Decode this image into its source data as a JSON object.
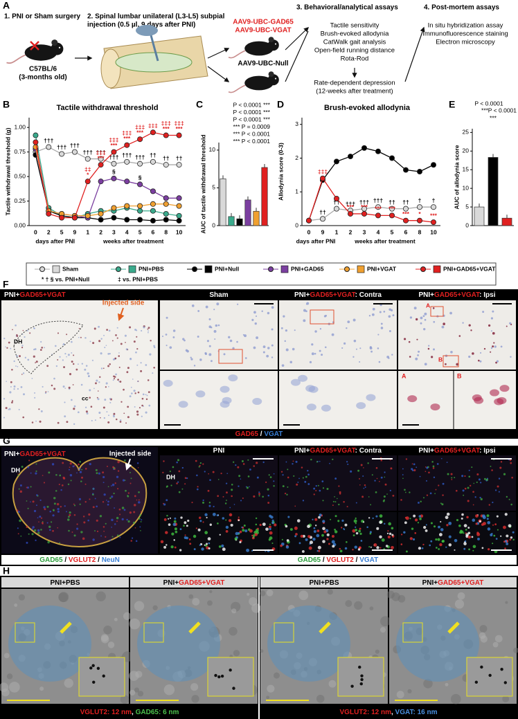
{
  "panel_a": {
    "letter": "A",
    "step_1": "1. PNI or Sham surgery",
    "step_2": [
      "2. Spinal lumbar unilateral (L3-L5) subpial",
      "injection (0.5 µl, 9 days after PNI)"
    ],
    "mouse_strain": [
      "C57BL/6",
      "(3-months old)"
    ],
    "vectors_treatment": [
      "AAV9-UBC-GAD65",
      "AAV9-UBC-VGAT"
    ],
    "vector_control": "AAV9-UBC-Null",
    "step_3": "3. Behavioral/analytical assays",
    "assays": [
      "Tactile sensitivity",
      "Brush-evoked allodynia",
      "CatWalk gait analysis",
      "Open-field running distance",
      "Rota-Rod"
    ],
    "depression": [
      "Rate-dependent depression",
      "(12-weeks after treatment)"
    ],
    "step_4": "4. Post-mortem assays",
    "post_mortem": [
      "In situ hybridization assay",
      "Immunofluorescence staining",
      "Electron microscopy"
    ]
  },
  "chart_data": [
    {
      "type": "line",
      "letter": "B",
      "title": "Tactile withdrawal threshold",
      "y_label": "Tactile withdrawal threshold (g)",
      "categories": [
        "0",
        "2",
        "5",
        "9",
        "1",
        "2",
        "3",
        "4",
        "5",
        "6",
        "8",
        "10"
      ],
      "x_groups": [
        "days after PNI",
        "weeks after treatment"
      ],
      "ylim": [
        0,
        1.1
      ],
      "yticks": [
        {
          "value": 0,
          "label": "0.00"
        },
        {
          "value": 0.25,
          "label": "0.25"
        },
        {
          "value": 0.5,
          "label": "0.50"
        },
        {
          "value": 0.75,
          "label": "0.75"
        },
        {
          "value": 1,
          "label": "1.00"
        }
      ],
      "series": [
        {
          "name": "Sham",
          "color": "#d9d9d9",
          "values": [
            0.75,
            0.8,
            0.73,
            0.75,
            0.68,
            0.68,
            0.63,
            0.65,
            0.63,
            0.65,
            0.62,
            0.62
          ],
          "annotation_color": "#000000",
          "annotations": [
            null,
            [
              "†††"
            ],
            [
              "†††"
            ],
            [
              "†††"
            ],
            [
              "†††"
            ],
            [
              "†††"
            ],
            [
              "†††"
            ],
            [
              "†††"
            ],
            [
              "†††"
            ],
            [
              "††"
            ],
            [
              "††"
            ],
            [
              "††"
            ]
          ]
        },
        {
          "name": "PNI+PBS",
          "color": "#3aaa8c",
          "values": [
            0.92,
            0.18,
            0.1,
            0.08,
            0.12,
            0.15,
            0.15,
            0.18,
            0.15,
            0.15,
            0.12,
            0.1
          ]
        },
        {
          "name": "PNI+Null",
          "color": "#000000",
          "values": [
            0.72,
            0.15,
            0.1,
            0.08,
            0.08,
            0.06,
            0.08,
            0.06,
            0.06,
            0.05,
            0.06,
            0.05
          ]
        },
        {
          "name": "PNI+GAD65",
          "color": "#7b3fa0",
          "values": [
            0.78,
            0.15,
            0.12,
            0.1,
            0.08,
            0.45,
            0.48,
            0.45,
            0.42,
            0.35,
            0.28,
            0.28
          ],
          "annotation_color": "#000000",
          "annotations": [
            null,
            null,
            null,
            null,
            null,
            null,
            [
              "§"
            ],
            null,
            [
              "§"
            ],
            null,
            null,
            null
          ]
        },
        {
          "name": "PNI+VGAT",
          "color": "#f0a030",
          "values": [
            0.8,
            0.15,
            0.12,
            0.1,
            0.1,
            0.12,
            0.18,
            0.2,
            0.2,
            0.22,
            0.22,
            0.2
          ]
        },
        {
          "name": "PNI+GAD65+VGAT",
          "color": "#e02020",
          "values": [
            0.85,
            0.12,
            0.08,
            0.08,
            0.45,
            0.62,
            0.75,
            0.82,
            0.88,
            0.95,
            0.92,
            0.92
          ],
          "annotation_color": "#e02020",
          "annotations": [
            null,
            null,
            null,
            null,
            [
              "‡‡",
              "*"
            ],
            [
              "‡‡‡",
              "***"
            ],
            [
              "‡‡‡",
              "***"
            ],
            [
              "‡‡‡",
              "***"
            ],
            [
              "‡‡‡",
              "***"
            ],
            [
              "‡‡‡"
            ],
            [
              "‡‡‡",
              "***"
            ],
            [
              "‡‡‡",
              "***"
            ]
          ]
        }
      ]
    },
    {
      "type": "bar",
      "letter": "C",
      "y_label": "AUC of tactile withdrawal threshold",
      "categories": [
        null,
        null,
        null,
        null,
        null,
        null
      ],
      "values": [
        6.2,
        1.2,
        0.9,
        3.4,
        1.9,
        7.7
      ],
      "colors": [
        "#d9d9d9",
        "#3aaa8c",
        "#000000",
        "#7b3fa0",
        "#f0a030",
        "#e02020"
      ],
      "ylim": [
        0,
        11
      ],
      "yticks": [
        0,
        5,
        10
      ],
      "comparisons": [
        "P < 0.0001 ***",
        "P < 0.0001 ***",
        "P < 0.0001 ***",
        "*** P = 0.0009",
        "*** P < 0.0001",
        "*** P < 0.0001"
      ]
    },
    {
      "type": "line",
      "letter": "D",
      "title": "Brush-evoked allodynia",
      "y_label": "Allodynia score (0-3)",
      "categories": [
        "0",
        "9",
        "1",
        "2",
        "3",
        "4",
        "5",
        "6",
        "8",
        "10"
      ],
      "x_groups": [
        "days after PNI",
        "weeks after treatment"
      ],
      "ylim": [
        0,
        3.2
      ],
      "yticks": [
        0,
        1,
        2,
        3
      ],
      "series": [
        {
          "color": "#d9d9d9",
          "values": [
            0.15,
            0.2,
            0.5,
            0.45,
            0.5,
            0.55,
            0.5,
            0.5,
            0.55,
            0.55
          ],
          "annotation_color": "#000000",
          "annotations": [
            null,
            [
              "††"
            ],
            [
              "††"
            ],
            [
              "†††"
            ],
            [
              "†††"
            ],
            [
              "†††"
            ],
            [
              "††"
            ],
            [
              "††"
            ],
            [
              "†"
            ],
            [
              "†"
            ]
          ]
        },
        {
          "color": "#000000",
          "values": [
            0.15,
            1.35,
            1.9,
            2.05,
            2.3,
            2.2,
            2.0,
            1.65,
            1.6,
            1.8
          ]
        },
        {
          "color": "#e02020",
          "values": [
            0.15,
            1.4,
            0.8,
            0.35,
            0.35,
            0.3,
            0.3,
            0.15,
            0.15,
            0.1
          ],
          "annotation_color": "#e02020",
          "annotations": [
            null,
            [
              "‡‡‡"
            ],
            null,
            [
              "***"
            ],
            [
              "***"
            ],
            [
              "***"
            ],
            [
              "***"
            ],
            [
              "***"
            ],
            [
              "*"
            ],
            [
              "***"
            ]
          ]
        }
      ]
    },
    {
      "type": "bar",
      "letter": "E",
      "y_label": "AUC of allodynia score",
      "categories": [
        null,
        null,
        null
      ],
      "values": [
        5.0,
        18.3,
        2.0
      ],
      "colors": [
        "#d9d9d9",
        "#000000",
        "#e02020"
      ],
      "ylim": [
        0,
        26
      ],
      "yticks": [
        0,
        5,
        10,
        15,
        20,
        25
      ],
      "comparisons": [
        "P < 0.0001",
        "***",
        "***",
        "P < 0.0001"
      ]
    }
  ],
  "legend": {
    "notes": [
      "* † § vs. PNI+Null",
      "‡ vs. PNI+PBS"
    ]
  },
  "panel_f": {
    "letter": "F",
    "overview_title": [
      {
        "text": "PNI+",
        "color": "#ffffff"
      },
      {
        "text": "GAD65+VGAT",
        "color": "#e02020"
      }
    ],
    "injected_side": "Injected side",
    "dh": "DH",
    "cc": "cc",
    "columns": [
      [
        {
          "text": "Sham",
          "color": "#ffffff"
        }
      ],
      [
        {
          "text": "PNI+",
          "color": "#ffffff"
        },
        {
          "text": "GAD65+VGAT",
          "color": "#e02020"
        },
        {
          "text": ": Contra",
          "color": "#ffffff"
        }
      ],
      [
        {
          "text": "PNI+",
          "color": "#ffffff"
        },
        {
          "text": "GAD65+VGAT",
          "color": "#e02020"
        },
        {
          "text": ": Ipsi",
          "color": "#ffffff"
        }
      ]
    ],
    "insets": [
      "A",
      "B"
    ],
    "caption": [
      {
        "text": "GAD65",
        "color": "#e02020"
      },
      {
        "text": " / ",
        "color": "#ffffff"
      },
      {
        "text": "VGAT",
        "color": "#3a7fd5"
      }
    ]
  },
  "panel_g": {
    "letter": "G",
    "overview_title": [
      {
        "text": "PNI+",
        "color": "#ffffff"
      },
      {
        "text": "GAD65+VGAT",
        "color": "#e02020"
      }
    ],
    "injected_side": "Injected side",
    "dh": "DH",
    "columns": [
      [
        {
          "text": "PNI",
          "color": "#ffffff"
        }
      ],
      [
        {
          "text": "PNI+",
          "color": "#ffffff"
        },
        {
          "text": "GAD65+VGAT",
          "color": "#e02020"
        },
        {
          "text": ": Contra",
          "color": "#ffffff"
        }
      ],
      [
        {
          "text": "PNI+",
          "color": "#ffffff"
        },
        {
          "text": "GAD65+VGAT",
          "color": "#e02020"
        },
        {
          "text": ": Ipsi",
          "color": "#ffffff"
        }
      ]
    ],
    "caption_left": [
      {
        "text": "GAD65",
        "color": "#2e9e3e"
      },
      {
        "text": " / ",
        "color": "#000000"
      },
      {
        "text": "VGLUT2",
        "color": "#e02020"
      },
      {
        "text": " / ",
        "color": "#000000"
      },
      {
        "text": "NeuN",
        "color": "#3a7fd5"
      }
    ],
    "caption_right": [
      {
        "text": "GAD65",
        "color": "#2e9e3e"
      },
      {
        "text": " / ",
        "color": "#000000"
      },
      {
        "text": "VGLUT2",
        "color": "#e02020"
      },
      {
        "text": " / ",
        "color": "#000000"
      },
      {
        "text": "VGAT",
        "color": "#3a7fd5"
      }
    ]
  },
  "panel_h": {
    "letter": "H",
    "columns": [
      [
        {
          "text": "PNI+PBS",
          "color": "#000000"
        }
      ],
      [
        {
          "text": "PNI+",
          "color": "#000000"
        },
        {
          "text": "GAD65+VGAT",
          "color": "#e02020"
        }
      ],
      [
        {
          "text": "PNI+PBS",
          "color": "#000000"
        }
      ],
      [
        {
          "text": "PNI+",
          "color": "#000000"
        },
        {
          "text": "GAD65+VGAT",
          "color": "#e02020"
        }
      ]
    ],
    "captions": [
      [
        {
          "text": "VGLUT2: 12 nm",
          "color": "#e02020"
        },
        {
          "text": ", ",
          "color": "#ffffff"
        },
        {
          "text": "GAD65: 6 nm",
          "color": "#4cc04c"
        }
      ],
      [
        {
          "text": "VGLUT2: 12 nm",
          "color": "#e02020"
        },
        {
          "text": ", ",
          "color": "#ffffff"
        },
        {
          "text": "VGAT: 16 nm",
          "color": "#4a90e2"
        }
      ]
    ]
  }
}
